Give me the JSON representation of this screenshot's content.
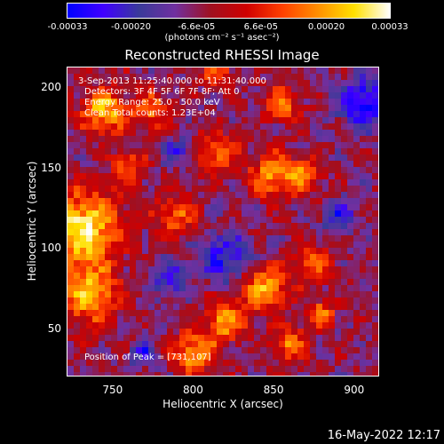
{
  "colorbar": {
    "min": -0.00033,
    "max": 0.00033,
    "ticks": [
      {
        "label": "-0.00033",
        "value": -0.00033
      },
      {
        "label": "-0.00020",
        "value": -0.0002
      },
      {
        "label": "-6.6e-05",
        "value": -6.6e-05
      },
      {
        "label": "6.6e-05",
        "value": 6.6e-05
      },
      {
        "label": "0.00020",
        "value": 0.0002
      },
      {
        "label": "0.00033",
        "value": 0.00033
      }
    ],
    "unit": "(photons cm⁻² s⁻¹ asec⁻²)"
  },
  "chart_data": {
    "type": "heatmap",
    "title": "Reconstructed RHESSI Image",
    "xlabel": "Heliocentric X (arcsec)",
    "ylabel": "Heliocentric Y (arcsec)",
    "xlim": [
      722,
      915
    ],
    "ylim": [
      21,
      212
    ],
    "xticks": [
      750,
      800,
      850,
      900
    ],
    "yticks": [
      50,
      100,
      150,
      200
    ],
    "colormap": [
      "#0000ff",
      "#4000ff",
      "#3a3a9a",
      "#7030a0",
      "#a01020",
      "#d00000",
      "#ff4000",
      "#ff9000",
      "#ffe000",
      "#ffffff"
    ],
    "peak": [
      731,
      107
    ],
    "bright_regions": [
      {
        "x": 732,
        "y": 112,
        "radius": 16,
        "level": 1.0
      },
      {
        "x": 736,
        "y": 70,
        "radius": 12,
        "level": 0.85
      },
      {
        "x": 745,
        "y": 185,
        "radius": 10,
        "level": 0.8
      },
      {
        "x": 760,
        "y": 150,
        "radius": 7,
        "level": 0.55
      },
      {
        "x": 790,
        "y": 120,
        "radius": 9,
        "level": 0.55
      },
      {
        "x": 775,
        "y": 185,
        "radius": 8,
        "level": 0.6
      },
      {
        "x": 815,
        "y": 160,
        "radius": 9,
        "level": 0.55
      },
      {
        "x": 815,
        "y": 210,
        "radius": 7,
        "level": 0.5
      },
      {
        "x": 855,
        "y": 190,
        "radius": 8,
        "level": 0.6
      },
      {
        "x": 850,
        "y": 145,
        "radius": 10,
        "level": 0.7
      },
      {
        "x": 870,
        "y": 145,
        "radius": 7,
        "level": 0.6
      },
      {
        "x": 875,
        "y": 90,
        "radius": 8,
        "level": 0.55
      },
      {
        "x": 845,
        "y": 75,
        "radius": 10,
        "level": 0.75
      },
      {
        "x": 820,
        "y": 55,
        "radius": 9,
        "level": 0.7
      },
      {
        "x": 800,
        "y": 35,
        "radius": 9,
        "level": 0.75
      },
      {
        "x": 860,
        "y": 40,
        "radius": 8,
        "level": 0.6
      },
      {
        "x": 880,
        "y": 60,
        "radius": 6,
        "level": 0.55
      }
    ],
    "dark_regions": [
      {
        "x": 905,
        "y": 190,
        "radius": 10,
        "level": -0.8
      },
      {
        "x": 820,
        "y": 95,
        "radius": 11,
        "level": -0.55
      },
      {
        "x": 785,
        "y": 80,
        "radius": 8,
        "level": -0.45
      },
      {
        "x": 890,
        "y": 120,
        "radius": 7,
        "level": -0.5
      },
      {
        "x": 770,
        "y": 35,
        "radius": 6,
        "level": -0.45
      },
      {
        "x": 790,
        "y": 160,
        "radius": 6,
        "level": -0.4
      }
    ]
  },
  "annotations": {
    "time_range": "3-Sep-2013 11:25:40.000 to 11:31:40.000",
    "detectors": "Detectors: 3F 4F 5F 6F 7F 8F; Att 0",
    "energy": "Energy Range: 25.0 - 50.0 keV",
    "method": "Clean    Total counts: 1.23E+04",
    "peak": "Position of Peak = [731,107]"
  },
  "timestamp": "16-May-2022 12:17"
}
